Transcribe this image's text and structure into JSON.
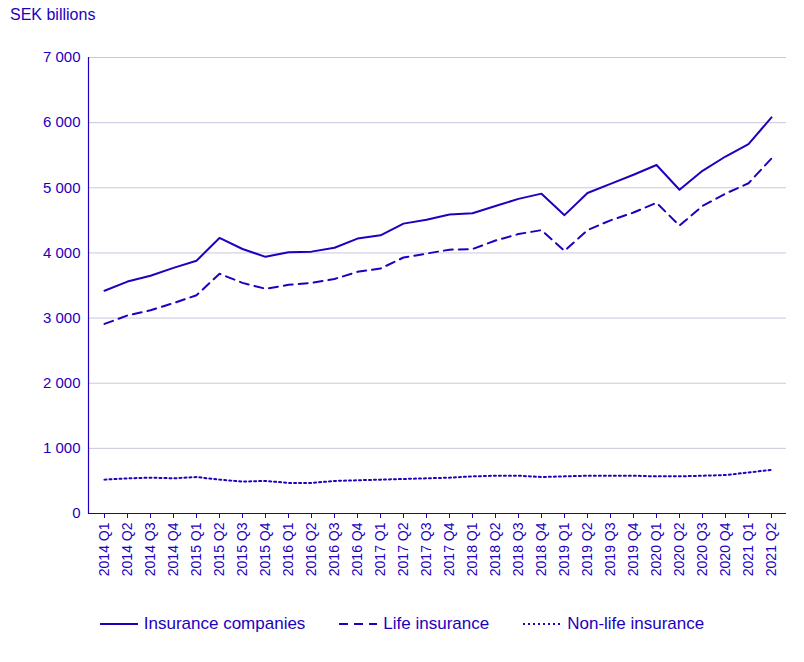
{
  "chart_data": {
    "type": "line",
    "y_label": "SEK billions",
    "categories": [
      "2014 Q1",
      "2014 Q2",
      "2014 Q3",
      "2014 Q4",
      "2015 Q1",
      "2015 Q2",
      "2015 Q3",
      "2015 Q4",
      "2016 Q1",
      "2016 Q2",
      "2016 Q3",
      "2016 Q4",
      "2017 Q1",
      "2017 Q2",
      "2017 Q3",
      "2017 Q4",
      "2018 Q1",
      "2018 Q2",
      "2018 Q3",
      "2018 Q4",
      "2019 Q1",
      "2019 Q2",
      "2019 Q3",
      "2019 Q4",
      "2020 Q1",
      "2020 Q2",
      "2020 Q3",
      "2020 Q4",
      "2021 Q1",
      "2021 Q2"
    ],
    "series": [
      {
        "name": "Insurance companies",
        "color": "#1e00be",
        "line_style": "solid",
        "values": [
          3420,
          3560,
          3650,
          3770,
          3880,
          4230,
          4060,
          3940,
          4010,
          4020,
          4080,
          4220,
          4270,
          4450,
          4510,
          4590,
          4610,
          4720,
          4830,
          4910,
          4580,
          4920,
          5060,
          5200,
          5350,
          4970,
          5260,
          5480,
          5670,
          6080
        ]
      },
      {
        "name": "Life insurance",
        "color": "#1e00be",
        "line_style": "dashed",
        "values": [
          2910,
          3040,
          3120,
          3230,
          3350,
          3680,
          3540,
          3450,
          3510,
          3540,
          3600,
          3710,
          3760,
          3930,
          3990,
          4050,
          4060,
          4190,
          4290,
          4350,
          4030,
          4350,
          4500,
          4620,
          4770,
          4420,
          4720,
          4910,
          5070,
          5450
        ]
      },
      {
        "name": "Non-life insurance",
        "color": "#1e00be",
        "line_style": "dotted",
        "values": [
          520,
          540,
          550,
          540,
          560,
          520,
          490,
          500,
          470,
          470,
          500,
          510,
          520,
          530,
          540,
          550,
          570,
          580,
          580,
          560,
          570,
          580,
          580,
          580,
          570,
          570,
          580,
          590,
          630,
          670
        ]
      }
    ],
    "ylim": [
      0,
      7000
    ],
    "yticks": [
      0,
      {
        "value": 1000,
        "label": "1 000"
      },
      {
        "value": 2000,
        "label": "2 000"
      },
      {
        "value": 3000,
        "label": "3 000"
      },
      {
        "value": 4000,
        "label": "4 000"
      },
      {
        "value": 5000,
        "label": "5 000"
      },
      {
        "value": 6000,
        "label": "6 000"
      },
      {
        "value": 7000,
        "label": "7 000"
      }
    ],
    "grid": true,
    "legend": "bottom"
  }
}
